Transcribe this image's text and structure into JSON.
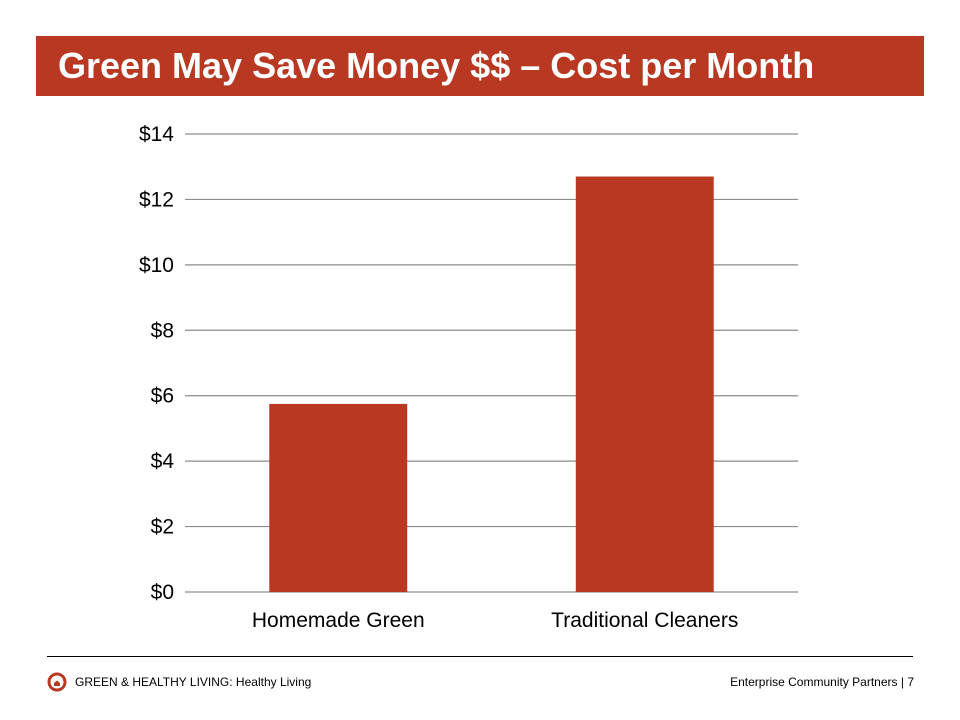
{
  "slide": {
    "title": "Green May Save Money $$ – Cost per Month"
  },
  "footer": {
    "left_text": "GREEN & HEALTHY LIVING: Healthy Living",
    "org": "Enterprise Community Partners",
    "separator": "|",
    "page_number": "7",
    "logo_icon": "enterprise-house-logo-icon"
  },
  "colors": {
    "accent": "#b83822",
    "bar": "#b83822",
    "grid": "#8c8c8c"
  },
  "chart_data": {
    "type": "bar",
    "categories": [
      "Homemade Green",
      "Traditional Cleaners"
    ],
    "values": [
      5.75,
      12.7
    ],
    "title": "",
    "xlabel": "",
    "ylabel": "",
    "ylim": [
      0,
      14
    ],
    "yticks": [
      0,
      2,
      4,
      6,
      8,
      10,
      12,
      14
    ],
    "ytick_labels": [
      "$0",
      "$2",
      "$4",
      "$6",
      "$8",
      "$10",
      "$12",
      "$14"
    ],
    "grid": true,
    "legend": "none"
  }
}
